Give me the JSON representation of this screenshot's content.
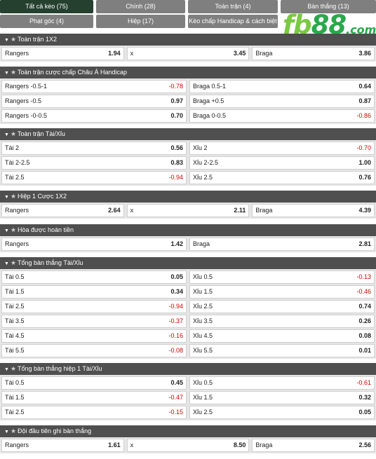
{
  "tabs": [
    {
      "label": "Tất cả kèo (75)",
      "active": true
    },
    {
      "label": "Chính (28)",
      "active": false
    },
    {
      "label": "Toàn trận (4)",
      "active": false
    },
    {
      "label": "Bàn thắng (13)",
      "active": false
    },
    {
      "label": "Phạt góc (4)",
      "active": false
    },
    {
      "label": "Hiệp (17)",
      "active": false
    },
    {
      "label": "Kèo chấp Handicap & cách biệt (3)",
      "active": false
    }
  ],
  "logo": {
    "fb": "fb",
    "n88": "88",
    "dom": ".com"
  },
  "icons": {
    "collapse": "chevron-down-icon",
    "favorite": "star-icon"
  },
  "colors": {
    "negative": "#d60000",
    "header": "#4f4f4f",
    "active_tab": "#25402f",
    "tab": "#7f7f7f"
  },
  "sections": [
    {
      "title": "Toàn trận 1X2",
      "cols": 3,
      "rows": [
        [
          {
            "label": "Rangers",
            "value": "1.94"
          },
          {
            "label": "x",
            "value": "3.45"
          },
          {
            "label": "Braga",
            "value": "3.86"
          }
        ]
      ]
    },
    {
      "title": "Toàn trận cược chấp Châu Á Handicap",
      "cols": 2,
      "rows": [
        [
          {
            "label": "Rangers -0.5-1",
            "value": "-0.78"
          },
          {
            "label": "Braga 0.5-1",
            "value": "0.64"
          }
        ],
        [
          {
            "label": "Rangers -0.5",
            "value": "0.97"
          },
          {
            "label": "Braga +0.5",
            "value": "0.87"
          }
        ],
        [
          {
            "label": "Rangers -0-0.5",
            "value": "0.70"
          },
          {
            "label": "Braga 0-0.5",
            "value": "-0.86"
          }
        ]
      ]
    },
    {
      "title": "Toàn trận Tài/Xỉu",
      "cols": 2,
      "rows": [
        [
          {
            "label": "Tài 2",
            "value": "0.56"
          },
          {
            "label": "Xỉu 2",
            "value": "-0.70"
          }
        ],
        [
          {
            "label": "Tài 2-2.5",
            "value": "0.83"
          },
          {
            "label": "Xỉu 2-2.5",
            "value": "1.00"
          }
        ],
        [
          {
            "label": "Tài 2.5",
            "value": "-0.94"
          },
          {
            "label": "Xỉu 2.5",
            "value": "0.76"
          }
        ]
      ]
    },
    {
      "title": "Hiệp 1 Cược 1X2",
      "cols": 3,
      "rows": [
        [
          {
            "label": "Rangers",
            "value": "2.64"
          },
          {
            "label": "x",
            "value": "2.11"
          },
          {
            "label": "Braga",
            "value": "4.39"
          }
        ]
      ]
    },
    {
      "title": "Hòa được hoàn tiền",
      "cols": 2,
      "rows": [
        [
          {
            "label": "Rangers",
            "value": "1.42"
          },
          {
            "label": "Braga",
            "value": "2.81"
          }
        ]
      ]
    },
    {
      "title": "Tổng bàn thắng Tài/Xỉu",
      "cols": 2,
      "rows": [
        [
          {
            "label": "Tài 0.5",
            "value": "0.05"
          },
          {
            "label": "Xỉu 0.5",
            "value": "-0.13"
          }
        ],
        [
          {
            "label": "Tài 1.5",
            "value": "0.34"
          },
          {
            "label": "Xỉu 1.5",
            "value": "-0.46"
          }
        ],
        [
          {
            "label": "Tài 2.5",
            "value": "-0.94"
          },
          {
            "label": "Xỉu 2.5",
            "value": "0.74"
          }
        ],
        [
          {
            "label": "Tài 3.5",
            "value": "-0.37"
          },
          {
            "label": "Xỉu 3.5",
            "value": "0.26"
          }
        ],
        [
          {
            "label": "Tài 4.5",
            "value": "-0.16"
          },
          {
            "label": "Xỉu 4.5",
            "value": "0.08"
          }
        ],
        [
          {
            "label": "Tài 5.5",
            "value": "-0.08"
          },
          {
            "label": "Xỉu 5.5",
            "value": "0.01"
          }
        ]
      ]
    },
    {
      "title": "Tổng bàn thắng hiệp 1 Tài/Xỉu",
      "cols": 2,
      "rows": [
        [
          {
            "label": "Tài 0.5",
            "value": "0.45"
          },
          {
            "label": "Xỉu 0.5",
            "value": "-0.61"
          }
        ],
        [
          {
            "label": "Tài 1.5",
            "value": "-0.47"
          },
          {
            "label": "Xỉu 1.5",
            "value": "0.32"
          }
        ],
        [
          {
            "label": "Tài 2.5",
            "value": "-0.15"
          },
          {
            "label": "Xỉu 2.5",
            "value": "0.05"
          }
        ]
      ]
    },
    {
      "title": "Đội đầu tiên ghi bàn thắng",
      "cols": 3,
      "rows": [
        [
          {
            "label": "Rangers",
            "value": "1.61"
          },
          {
            "label": "x",
            "value": "8.50"
          },
          {
            "label": "Braga",
            "value": "2.56"
          }
        ]
      ]
    }
  ]
}
